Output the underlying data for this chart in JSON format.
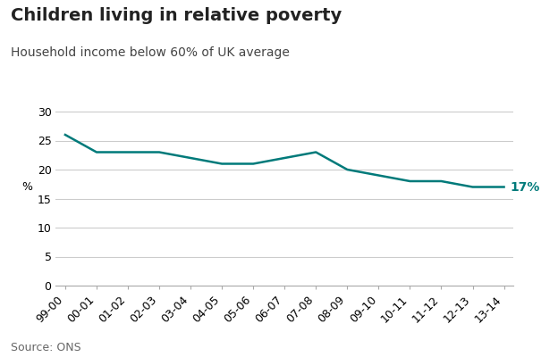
{
  "title": "Children living in relative poverty",
  "subtitle": "Household income below 60% of UK average",
  "source": "Source: ONS",
  "ylabel": "%",
  "x_labels": [
    "99-00",
    "00-01",
    "01-02",
    "02-03",
    "03-04",
    "04-05",
    "05-06",
    "06-07",
    "07-08",
    "08-09",
    "09-10",
    "10-11",
    "11-12",
    "12-13",
    "13-14"
  ],
  "values": [
    26,
    23,
    23,
    23,
    22,
    21,
    21,
    22,
    23,
    20,
    19,
    18,
    18,
    17,
    17
  ],
  "line_color": "#007A7A",
  "last_label": "17%",
  "last_label_color": "#007A7A",
  "ylim": [
    0,
    32
  ],
  "yticks": [
    0,
    5,
    10,
    15,
    20,
    25,
    30
  ],
  "background_color": "#ffffff",
  "grid_color": "#cccccc",
  "title_fontsize": 14,
  "subtitle_fontsize": 10,
  "source_fontsize": 9,
  "tick_fontsize": 9,
  "label_fontsize": 9
}
